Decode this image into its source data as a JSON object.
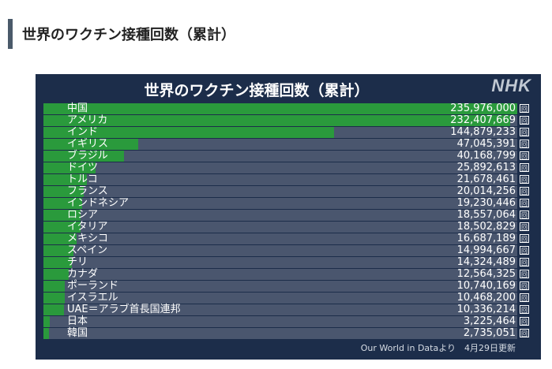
{
  "page": {
    "heading": "世界のワクチン接種回数（累計）"
  },
  "chart": {
    "title": "世界のワクチン接種回数（累計）",
    "logo": "NHK",
    "unit": "回",
    "source_note": "Our World in Dataより　4月29日更新"
  },
  "chart_data": {
    "type": "bar",
    "orientation": "horizontal",
    "title": "世界のワクチン接種回数（累計）",
    "unit": "回",
    "categories": [
      "中国",
      "アメリカ",
      "インド",
      "イギリス",
      "ブラジル",
      "ドイツ",
      "トルコ",
      "フランス",
      "インドネシア",
      "ロシア",
      "イタリア",
      "メキシコ",
      "スペイン",
      "チリ",
      "カナダ",
      "ポーランド",
      "イスラエル",
      "UAE＝アラブ首長国連邦",
      "日本",
      "韓国"
    ],
    "values": [
      235976000,
      232407669,
      144879233,
      47045391,
      40168799,
      25892613,
      21678461,
      20014256,
      19230446,
      18557064,
      18502829,
      16687189,
      14994667,
      14324489,
      12564325,
      10740169,
      10468200,
      10336214,
      3225464,
      2735051
    ],
    "value_labels": [
      "235,976,000",
      "232,407,669",
      "144,879,233",
      "47,045,391",
      "40,168,799",
      "25,892,613",
      "21,678,461",
      "20,014,256",
      "19,230,446",
      "18,557,064",
      "18,502,829",
      "16,687,189",
      "14,994,667",
      "14,324,489",
      "12,564,325",
      "10,740,169",
      "10,468,200",
      "10,336,214",
      "3,225,464",
      "2,735,051"
    ],
    "xlim": [
      0,
      235976000
    ],
    "bar_color": "#2a9a3c",
    "track_color": "#4a566e",
    "background_color": "#1c2d4a"
  }
}
